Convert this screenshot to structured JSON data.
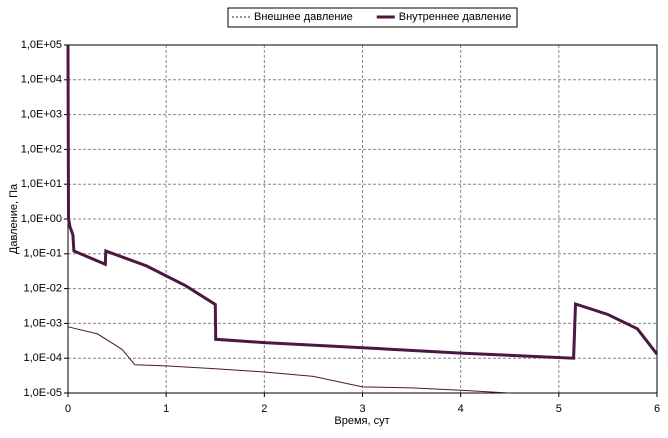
{
  "chart_data": {
    "type": "line",
    "xlabel": "Время, сут",
    "ylabel": "Давление, Па",
    "xlim": [
      0,
      6
    ],
    "xticks": [
      0,
      1,
      2,
      3,
      4,
      5,
      6
    ],
    "ylim": [
      1e-05,
      100000
    ],
    "log_y": true,
    "grid": true,
    "legend": "top",
    "yticks": [
      {
        "value": 1e-05,
        "label": "1,0E-05"
      },
      {
        "value": 0.0001,
        "label": "1,0E-04"
      },
      {
        "value": 0.001,
        "label": "1,0E-03"
      },
      {
        "value": 0.01,
        "label": "1,0E-02"
      },
      {
        "value": 0.1,
        "label": "1,0E-01"
      },
      {
        "value": 1,
        "label": "1,0E+00"
      },
      {
        "value": 10,
        "label": "1,0E+01"
      },
      {
        "value": 100,
        "label": "1,0E+02"
      },
      {
        "value": 1000,
        "label": "1,0E+03"
      },
      {
        "value": 10000,
        "label": "1,0E+04"
      },
      {
        "value": 100000,
        "label": "1,0E+05"
      }
    ],
    "series": [
      {
        "name": "Внешнее давление",
        "color": "#4b1840",
        "width": 1,
        "x": [
          0,
          0.3,
          0.55,
          0.68,
          1,
          1.5,
          2,
          2.5,
          3,
          3.5,
          4,
          4.5
        ],
        "values": [
          0.0008,
          0.0005,
          0.00018,
          6.5e-05,
          6e-05,
          5e-05,
          4e-05,
          3e-05,
          1.5e-05,
          1.4e-05,
          1.2e-05,
          1e-05
        ]
      },
      {
        "name": "Внутреннее давление",
        "color": "#4b1840",
        "width": 3,
        "x": [
          0,
          0.005,
          0.02,
          0.05,
          0.06,
          0.38,
          0.385,
          0.8,
          1.2,
          1.5,
          1.505,
          2,
          3,
          4,
          5.15,
          5.17,
          5.5,
          5.8,
          6
        ],
        "values": [
          100000,
          1,
          0.6,
          0.35,
          0.12,
          0.05,
          0.12,
          0.045,
          0.012,
          0.0035,
          0.00035,
          0.00028,
          0.0002,
          0.00014,
          0.0001,
          0.0036,
          0.0018,
          0.0007,
          0.00013
        ]
      }
    ]
  }
}
